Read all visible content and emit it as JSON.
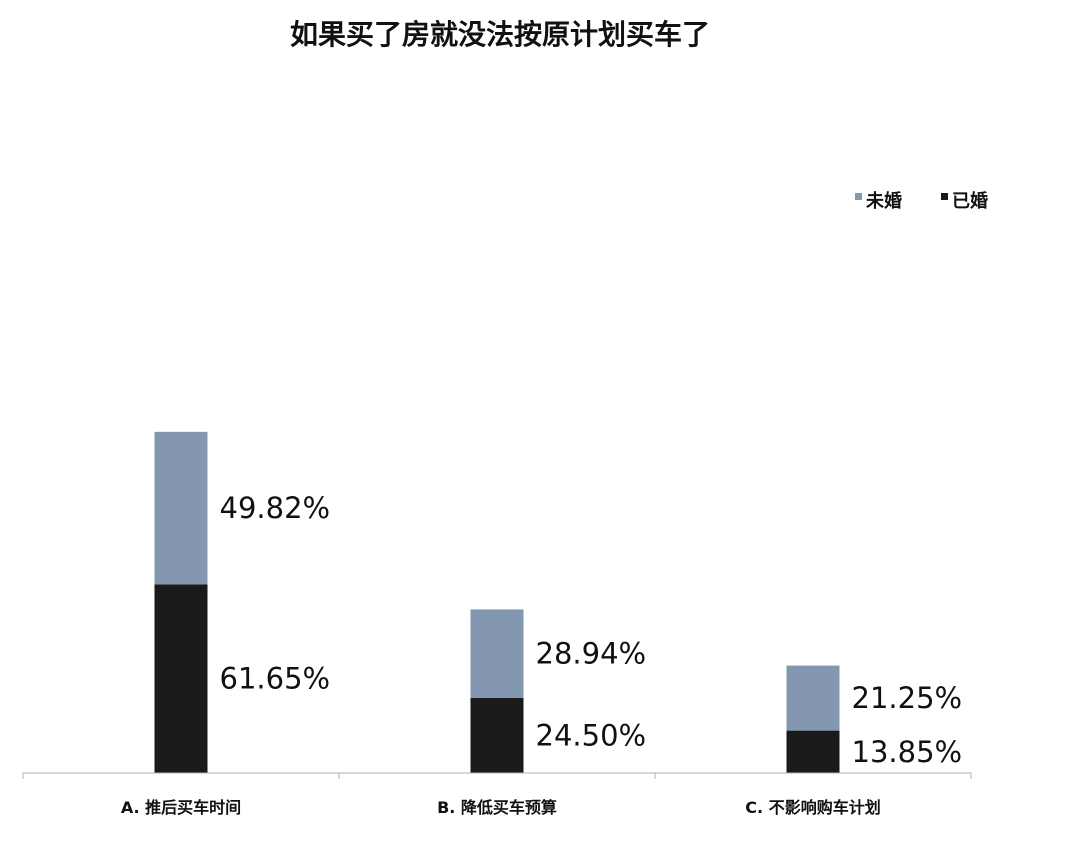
{
  "chart_data": {
    "type": "bar",
    "stacked": true,
    "title": "如果买了房就没法按原计划买车了",
    "xlabel": "",
    "ylabel": "",
    "ylim": [
      0,
      120
    ],
    "grid": false,
    "legend_position": "right",
    "categories": [
      "A. 推后买车时间",
      "B. 降低买车预算",
      "C. 不影响购车计划"
    ],
    "series": [
      {
        "name": "已婚",
        "color": "#1a1a1a",
        "values": [
          61.65,
          24.5,
          13.85
        ],
        "labels": [
          "61.65%",
          "24.50%",
          "13.85%"
        ]
      },
      {
        "name": "未婚",
        "color": "#8497b0",
        "values": [
          49.82,
          28.94,
          21.25
        ],
        "labels": [
          "49.82%",
          "28.94%",
          "21.25%"
        ]
      }
    ],
    "legend": [
      {
        "name": "未婚",
        "color": "#8497b0"
      },
      {
        "name": "已婚",
        "color": "#1a1a1a"
      }
    ]
  }
}
